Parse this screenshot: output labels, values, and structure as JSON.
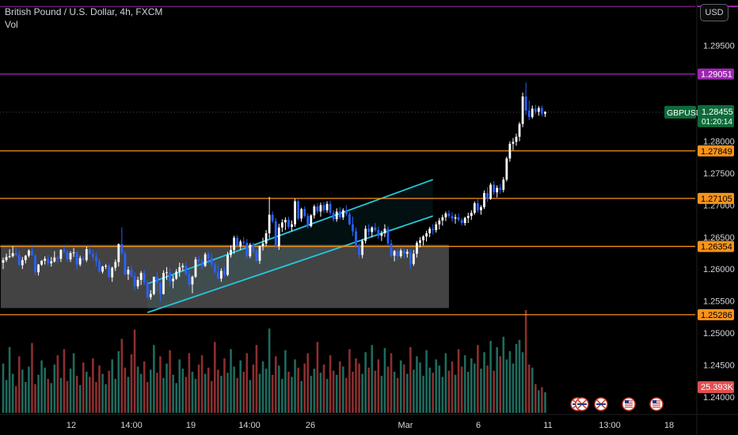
{
  "header": {
    "title": "British Pound / U.S. Dollar, 4h, FXCM",
    "volume_label": "Vol",
    "currency_button": "USD"
  },
  "symbol_label": {
    "symbol": "GBPUSD",
    "price": "1.28455",
    "countdown": "01:20:14"
  },
  "colors": {
    "background": "#000000",
    "up": "#ffffff",
    "down": "#2962ff",
    "volume_up": "#1e6b5e",
    "volume_down": "#8c2f2f",
    "orange_line": "#f7931a",
    "purple_line": "#9c27b0",
    "channel": "#26c6da",
    "zone": "#5a5a5a",
    "axis_text": "#d1d4dc",
    "volume_badge": "#e04e4e"
  },
  "chart_data": {
    "type": "candlestick",
    "title": "British Pound / U.S. Dollar, 4h, FXCM",
    "price_axis": {
      "ylim": [
        1.2375,
        1.3021
      ],
      "ticks": [
        "1.29500",
        "1.28000",
        "1.27500",
        "1.27000",
        "1.26500",
        "1.26000",
        "1.25500",
        "1.25000",
        "1.24500",
        "1.24000"
      ]
    },
    "time_axis": {
      "ticks": [
        "12",
        "14:00",
        "19",
        "14:00",
        "26",
        "Mar",
        "6",
        "11",
        "13:00",
        "18"
      ]
    },
    "horizontal_lines": [
      {
        "price": 1.29051,
        "label": "1.29051",
        "style": "purple"
      },
      {
        "price": 1.27849,
        "label": "1.27849",
        "style": "orange"
      },
      {
        "price": 1.27105,
        "label": "1.27105",
        "style": "orange"
      },
      {
        "price": 1.26354,
        "label": "1.26354",
        "style": "orange"
      },
      {
        "price": 1.25286,
        "label": "1.25286",
        "style": "orange"
      }
    ],
    "top_line": {
      "price": 1.3011,
      "style": "purple"
    },
    "last_price": 1.28455,
    "volume_badge": "25.393K",
    "channel": {
      "lower": [
        [
          0,
          1.2532
        ],
        [
          89,
          1.2683
        ]
      ],
      "upper": [
        [
          0,
          1.2577
        ],
        [
          89,
          1.274
        ]
      ]
    },
    "zone": {
      "from": 0,
      "to": 139,
      "low": 1.2539,
      "high": 1.2638
    },
    "candles": [
      [
        1.261,
        1.2618,
        1.26,
        1.2614
      ],
      [
        1.2614,
        1.2624,
        1.2611,
        1.2619
      ],
      [
        1.2619,
        1.2631,
        1.2617,
        1.262
      ],
      [
        1.262,
        1.2636,
        1.2618,
        1.2625
      ],
      [
        1.2625,
        1.2634,
        1.262,
        1.2622
      ],
      [
        1.2622,
        1.2628,
        1.2607,
        1.2606
      ],
      [
        1.2606,
        1.2619,
        1.26,
        1.2614
      ],
      [
        1.2614,
        1.2622,
        1.2609,
        1.2621
      ],
      [
        1.2621,
        1.2631,
        1.2618,
        1.2629
      ],
      [
        1.2629,
        1.2637,
        1.2621,
        1.2621
      ],
      [
        1.2621,
        1.2624,
        1.2591,
        1.2595
      ],
      [
        1.2595,
        1.2608,
        1.259,
        1.2607
      ],
      [
        1.2607,
        1.2614,
        1.2605,
        1.2613
      ],
      [
        1.2613,
        1.262,
        1.2607,
        1.2616
      ],
      [
        1.2616,
        1.2622,
        1.2605,
        1.2609
      ],
      [
        1.2609,
        1.2619,
        1.2604,
        1.2612
      ],
      [
        1.2612,
        1.2628,
        1.261,
        1.2618
      ],
      [
        1.2618,
        1.262,
        1.2609,
        1.2616
      ],
      [
        1.2616,
        1.2631,
        1.2611,
        1.263
      ],
      [
        1.263,
        1.2638,
        1.2624,
        1.2627
      ],
      [
        1.2627,
        1.263,
        1.2611,
        1.2615
      ],
      [
        1.2615,
        1.2628,
        1.2611,
        1.2625
      ],
      [
        1.2625,
        1.2633,
        1.2619,
        1.2626
      ],
      [
        1.2626,
        1.2628,
        1.2599,
        1.2607
      ],
      [
        1.2607,
        1.2621,
        1.2604,
        1.2617
      ],
      [
        1.2617,
        1.262,
        1.2612,
        1.2614
      ],
      [
        1.2614,
        1.2635,
        1.2611,
        1.2631
      ],
      [
        1.2631,
        1.2636,
        1.2622,
        1.2624
      ],
      [
        1.2624,
        1.263,
        1.2613,
        1.2619
      ],
      [
        1.2619,
        1.2626,
        1.2604,
        1.2612
      ],
      [
        1.2612,
        1.2616,
        1.2595,
        1.2596
      ],
      [
        1.2596,
        1.2605,
        1.2593,
        1.2604
      ],
      [
        1.2604,
        1.2608,
        1.26,
        1.2605
      ],
      [
        1.2605,
        1.2608,
        1.2586,
        1.2587
      ],
      [
        1.2587,
        1.2604,
        1.258,
        1.2602
      ],
      [
        1.2602,
        1.2615,
        1.2597,
        1.2611
      ],
      [
        1.2611,
        1.264,
        1.2604,
        1.2639
      ],
      [
        1.2639,
        1.2665,
        1.2622,
        1.2625
      ],
      [
        1.2625,
        1.2629,
        1.259,
        1.2592
      ],
      [
        1.2592,
        1.2604,
        1.2583,
        1.2599
      ],
      [
        1.2599,
        1.2606,
        1.2587,
        1.2589
      ],
      [
        1.2589,
        1.2595,
        1.2566,
        1.2573
      ],
      [
        1.2573,
        1.2588,
        1.2569,
        1.2583
      ],
      [
        1.2583,
        1.2597,
        1.2575,
        1.2594
      ],
      [
        1.2594,
        1.2599,
        1.2575,
        1.2579
      ],
      [
        1.2579,
        1.2583,
        1.2553,
        1.2556
      ],
      [
        1.2556,
        1.2567,
        1.2552,
        1.2561
      ],
      [
        1.2561,
        1.2588,
        1.2559,
        1.2588
      ],
      [
        1.2588,
        1.2595,
        1.2564,
        1.2578
      ],
      [
        1.2578,
        1.2581,
        1.2549,
        1.2561
      ],
      [
        1.2561,
        1.2598,
        1.256,
        1.2594
      ],
      [
        1.2594,
        1.2603,
        1.2583,
        1.2595
      ],
      [
        1.2595,
        1.2601,
        1.2573,
        1.2581
      ],
      [
        1.2581,
        1.259,
        1.257,
        1.2585
      ],
      [
        1.2585,
        1.26,
        1.2583,
        1.2596
      ],
      [
        1.2596,
        1.261,
        1.2588,
        1.2603
      ],
      [
        1.2603,
        1.2609,
        1.2597,
        1.2605
      ],
      [
        1.2605,
        1.2612,
        1.259,
        1.2592
      ],
      [
        1.2592,
        1.2603,
        1.2572,
        1.2576
      ],
      [
        1.2576,
        1.259,
        1.2562,
        1.2588
      ],
      [
        1.2588,
        1.2619,
        1.2586,
        1.2615
      ],
      [
        1.2615,
        1.2621,
        1.2607,
        1.2612
      ],
      [
        1.2612,
        1.2617,
        1.26,
        1.2605
      ],
      [
        1.2605,
        1.2626,
        1.2603,
        1.2623
      ],
      [
        1.2623,
        1.2627,
        1.2609,
        1.2617
      ],
      [
        1.2617,
        1.2625,
        1.2603,
        1.2607
      ],
      [
        1.2607,
        1.2611,
        1.2592,
        1.2595
      ],
      [
        1.2595,
        1.2606,
        1.2584,
        1.2585
      ],
      [
        1.2585,
        1.2601,
        1.258,
        1.2597
      ],
      [
        1.2597,
        1.2604,
        1.2588,
        1.2591
      ],
      [
        1.2591,
        1.2627,
        1.2589,
        1.2622
      ],
      [
        1.2622,
        1.2637,
        1.2618,
        1.263
      ],
      [
        1.263,
        1.2652,
        1.2624,
        1.2649
      ],
      [
        1.2649,
        1.2653,
        1.2634,
        1.2636
      ],
      [
        1.2636,
        1.2646,
        1.263,
        1.2643
      ],
      [
        1.2643,
        1.265,
        1.2636,
        1.2641
      ],
      [
        1.2641,
        1.2647,
        1.2617,
        1.262
      ],
      [
        1.262,
        1.2641,
        1.2617,
        1.2638
      ],
      [
        1.2638,
        1.2642,
        1.2624,
        1.2628
      ],
      [
        1.2628,
        1.2631,
        1.2611,
        1.2613
      ],
      [
        1.2613,
        1.2637,
        1.2608,
        1.2636
      ],
      [
        1.2636,
        1.2649,
        1.2629,
        1.264
      ],
      [
        1.264,
        1.2661,
        1.2636,
        1.2656
      ],
      [
        1.2656,
        1.2713,
        1.2648,
        1.2685
      ],
      [
        1.2685,
        1.269,
        1.2672,
        1.2675
      ],
      [
        1.2675,
        1.268,
        1.2633,
        1.2636
      ],
      [
        1.2636,
        1.2671,
        1.263,
        1.2665
      ],
      [
        1.2665,
        1.2678,
        1.2658,
        1.2673
      ],
      [
        1.2673,
        1.2681,
        1.2661,
        1.2677
      ],
      [
        1.2677,
        1.2682,
        1.2663,
        1.2666
      ],
      [
        1.2666,
        1.2676,
        1.2659,
        1.267
      ],
      [
        1.267,
        1.271,
        1.2666,
        1.2706
      ],
      [
        1.2706,
        1.2709,
        1.2676,
        1.2679
      ],
      [
        1.2679,
        1.2696,
        1.2674,
        1.2694
      ],
      [
        1.2694,
        1.2698,
        1.2681,
        1.2683
      ],
      [
        1.2683,
        1.2687,
        1.2664,
        1.2667
      ],
      [
        1.2667,
        1.2686,
        1.2665,
        1.2684
      ],
      [
        1.2684,
        1.2701,
        1.2679,
        1.2698
      ],
      [
        1.2698,
        1.2703,
        1.2687,
        1.269
      ],
      [
        1.269,
        1.2704,
        1.2682,
        1.27
      ],
      [
        1.27,
        1.2705,
        1.2688,
        1.2692
      ],
      [
        1.2692,
        1.2706,
        1.2688,
        1.2702
      ],
      [
        1.2702,
        1.2707,
        1.2685,
        1.2688
      ],
      [
        1.2688,
        1.2692,
        1.2674,
        1.2678
      ],
      [
        1.2678,
        1.2695,
        1.2674,
        1.269
      ],
      [
        1.269,
        1.2697,
        1.2678,
        1.2681
      ],
      [
        1.2681,
        1.2695,
        1.2677,
        1.2692
      ],
      [
        1.2692,
        1.27,
        1.2683,
        1.2686
      ],
      [
        1.2686,
        1.2689,
        1.2668,
        1.267
      ],
      [
        1.267,
        1.2682,
        1.2652,
        1.2659
      ],
      [
        1.2659,
        1.2665,
        1.2634,
        1.2637
      ],
      [
        1.2637,
        1.264,
        1.2617,
        1.2622
      ],
      [
        1.2622,
        1.2647,
        1.2617,
        1.2644
      ],
      [
        1.2644,
        1.2668,
        1.264,
        1.2663
      ],
      [
        1.2663,
        1.267,
        1.2652,
        1.2658
      ],
      [
        1.2658,
        1.2667,
        1.265,
        1.2665
      ],
      [
        1.2665,
        1.2672,
        1.2658,
        1.2661
      ],
      [
        1.2661,
        1.2666,
        1.2647,
        1.2652
      ],
      [
        1.2652,
        1.266,
        1.2644,
        1.2656
      ],
      [
        1.2656,
        1.267,
        1.265,
        1.2663
      ],
      [
        1.2663,
        1.2667,
        1.2636,
        1.264
      ],
      [
        1.264,
        1.2646,
        1.2618,
        1.2621
      ],
      [
        1.2621,
        1.263,
        1.2612,
        1.2628
      ],
      [
        1.2628,
        1.2632,
        1.2614,
        1.262
      ],
      [
        1.262,
        1.2632,
        1.2617,
        1.2629
      ],
      [
        1.2629,
        1.2633,
        1.2617,
        1.2624
      ],
      [
        1.2624,
        1.2631,
        1.2618,
        1.2627
      ],
      [
        1.2627,
        1.2631,
        1.26,
        1.2608
      ],
      [
        1.2608,
        1.263,
        1.2605,
        1.2624
      ],
      [
        1.2624,
        1.2644,
        1.2618,
        1.2641
      ],
      [
        1.2641,
        1.265,
        1.2634,
        1.2645
      ],
      [
        1.2645,
        1.2653,
        1.2637,
        1.2651
      ],
      [
        1.2651,
        1.266,
        1.2643,
        1.2656
      ],
      [
        1.2656,
        1.2666,
        1.265,
        1.2663
      ],
      [
        1.2663,
        1.267,
        1.2654,
        1.2661
      ],
      [
        1.2661,
        1.2674,
        1.2657,
        1.267
      ],
      [
        1.267,
        1.268,
        1.2662,
        1.2676
      ],
      [
        1.2676,
        1.2685,
        1.2668,
        1.2681
      ],
      [
        1.2681,
        1.269,
        1.2675,
        1.2687
      ],
      [
        1.2687,
        1.2692,
        1.268,
        1.2683
      ],
      [
        1.2683,
        1.2689,
        1.2674,
        1.2679
      ],
      [
        1.2679,
        1.2686,
        1.2671,
        1.2681
      ],
      [
        1.2681,
        1.2687,
        1.2674,
        1.2677
      ],
      [
        1.2677,
        1.268,
        1.2668,
        1.2672
      ],
      [
        1.2672,
        1.2682,
        1.2668,
        1.268
      ],
      [
        1.268,
        1.2688,
        1.2672,
        1.2683
      ],
      [
        1.2683,
        1.2692,
        1.2677,
        1.2688
      ],
      [
        1.2688,
        1.2706,
        1.2685,
        1.2703
      ],
      [
        1.2703,
        1.2709,
        1.2688,
        1.2692
      ],
      [
        1.2692,
        1.27,
        1.2685,
        1.2697
      ],
      [
        1.2697,
        1.2723,
        1.2694,
        1.2719
      ],
      [
        1.2719,
        1.2728,
        1.2705,
        1.271
      ],
      [
        1.271,
        1.2735,
        1.2708,
        1.2732
      ],
      [
        1.2732,
        1.2738,
        1.2716,
        1.272
      ],
      [
        1.272,
        1.2731,
        1.2712,
        1.2727
      ],
      [
        1.2727,
        1.2733,
        1.2718,
        1.2724
      ],
      [
        1.2724,
        1.2744,
        1.272,
        1.274
      ],
      [
        1.274,
        1.2776,
        1.2737,
        1.2773
      ],
      [
        1.2773,
        1.28,
        1.2768,
        1.2796
      ],
      [
        1.2796,
        1.2805,
        1.2786,
        1.2799
      ],
      [
        1.2799,
        1.2812,
        1.2793,
        1.2807
      ],
      [
        1.2807,
        1.283,
        1.28,
        1.2827
      ],
      [
        1.2827,
        1.2876,
        1.2822,
        1.287
      ],
      [
        1.287,
        1.2892,
        1.2841,
        1.2848
      ],
      [
        1.2848,
        1.2864,
        1.2833,
        1.2838
      ],
      [
        1.2838,
        1.2856,
        1.2835,
        1.2851
      ],
      [
        1.2851,
        1.2857,
        1.2842,
        1.2846
      ],
      [
        1.2846,
        1.2855,
        1.284,
        1.2852
      ],
      [
        1.2852,
        1.2856,
        1.2839,
        1.2843
      ],
      [
        1.2843,
        1.2847,
        1.2838,
        1.2846
      ]
    ],
    "volumes": [
      0.48,
      0.32,
      0.64,
      0.38,
      0.26,
      0.55,
      0.42,
      0.3,
      0.45,
      0.68,
      0.28,
      0.37,
      0.51,
      0.44,
      0.33,
      0.29,
      0.47,
      0.56,
      0.34,
      0.62,
      0.31,
      0.43,
      0.58,
      0.36,
      0.27,
      0.49,
      0.4,
      0.35,
      0.53,
      0.3,
      0.46,
      0.38,
      0.28,
      0.41,
      0.52,
      0.33,
      0.6,
      0.72,
      0.44,
      0.35,
      0.57,
      0.81,
      0.45,
      0.38,
      0.5,
      0.3,
      0.42,
      0.66,
      0.39,
      0.55,
      0.34,
      0.48,
      0.61,
      0.37,
      0.29,
      0.52,
      0.43,
      0.35,
      0.58,
      0.4,
      0.33,
      0.47,
      0.56,
      0.38,
      0.44,
      0.31,
      0.69,
      0.42,
      0.36,
      0.53,
      0.39,
      0.62,
      0.45,
      0.34,
      0.51,
      0.4,
      0.58,
      0.32,
      0.47,
      0.66,
      0.38,
      0.5,
      0.43,
      0.82,
      0.37,
      0.55,
      0.46,
      0.33,
      0.61,
      0.4,
      0.35,
      0.52,
      0.44,
      0.31,
      0.48,
      0.58,
      0.36,
      0.43,
      0.69,
      0.39,
      0.47,
      0.33,
      0.56,
      0.41,
      0.37,
      0.5,
      0.45,
      0.34,
      0.62,
      0.4,
      0.53,
      0.48,
      0.38,
      0.59,
      0.44,
      0.66,
      0.41,
      0.52,
      0.36,
      0.63,
      0.45,
      0.58,
      0.4,
      0.34,
      0.51,
      0.47,
      0.38,
      0.64,
      0.42,
      0.55,
      0.49,
      0.36,
      0.61,
      0.44,
      0.39,
      0.52,
      0.46,
      0.35,
      0.58,
      0.41,
      0.5,
      0.37,
      0.62,
      0.45,
      0.56,
      0.4,
      0.53,
      0.48,
      0.66,
      0.43,
      0.59,
      0.46,
      0.7,
      0.41,
      0.64,
      0.55,
      0.74,
      0.52,
      0.6,
      0.48,
      0.67,
      0.71,
      0.59,
      1.0,
      0.47,
      0.44,
      0.28,
      0.22,
      0.25,
      0.2
    ],
    "event_markers": [
      "flag-uk",
      "flag-uk",
      "flag-uk",
      "flag-us",
      "flag-us"
    ]
  }
}
